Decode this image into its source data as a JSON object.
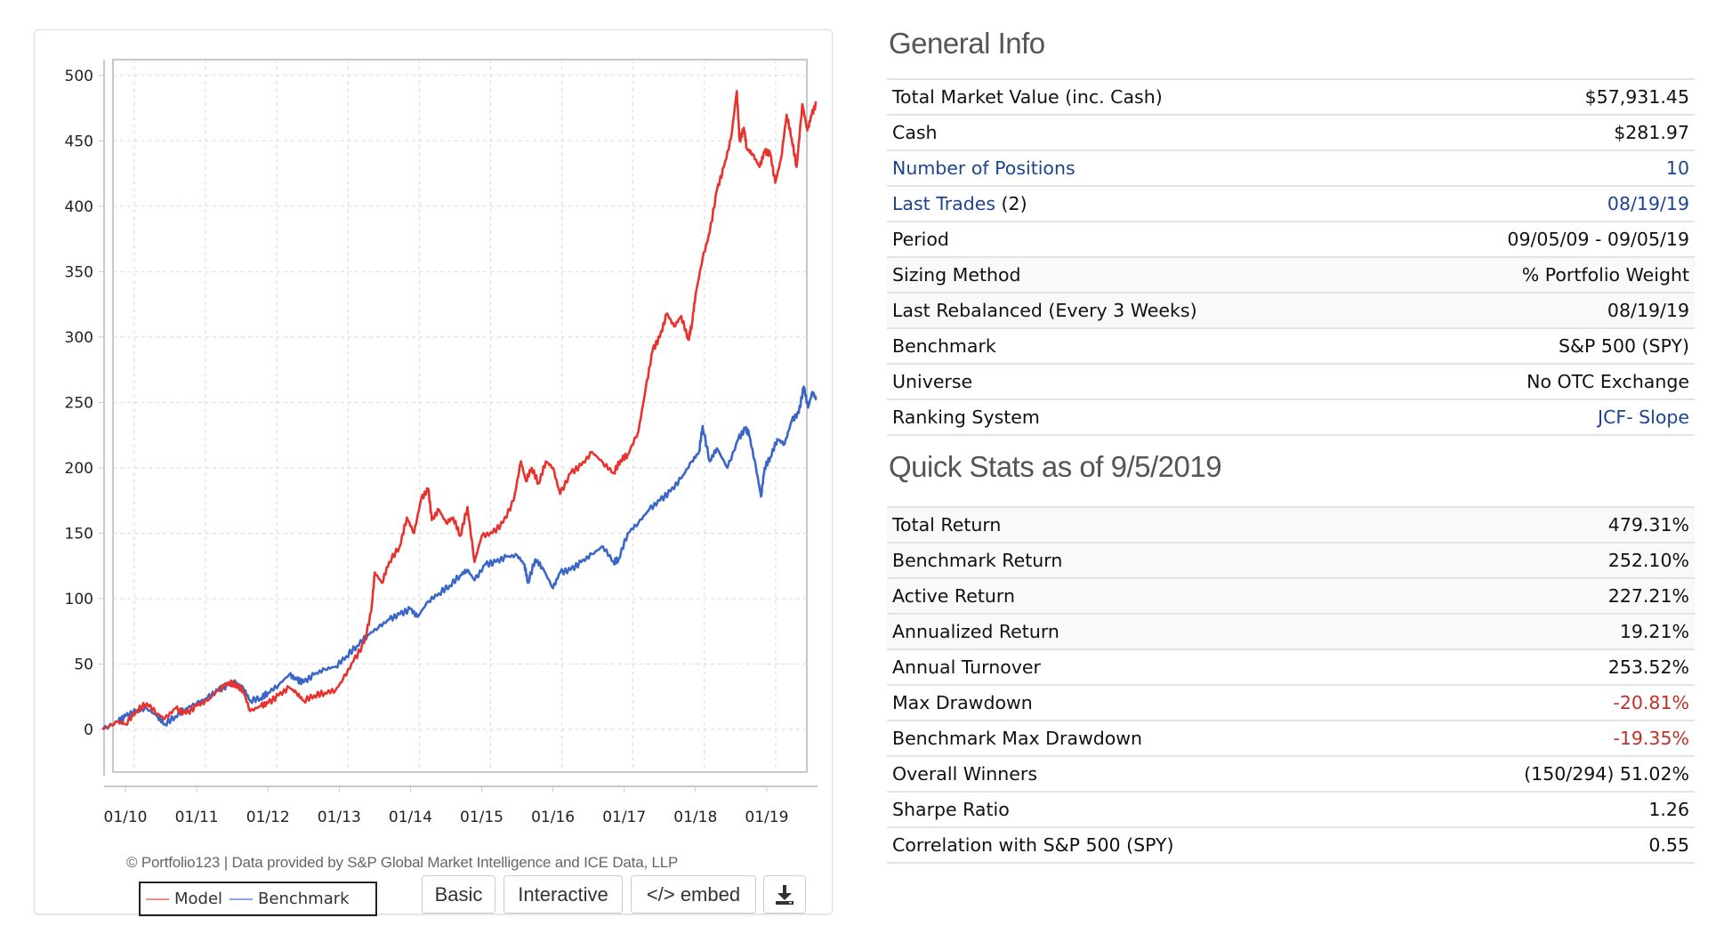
{
  "general_info": {
    "title": "General Info",
    "rows": [
      {
        "label": "Total Market Value (inc. Cash)",
        "value": "$57,931.45"
      },
      {
        "label": "Cash",
        "value": "$281.97"
      },
      {
        "label": "Number of Positions",
        "value": "10",
        "link": true
      },
      {
        "label": "Last Trades",
        "label_suffix": " (2)",
        "value": "08/19/19",
        "link": true
      },
      {
        "label": "Period",
        "value": "09/05/09 - 09/05/19"
      },
      {
        "label": "Sizing Method",
        "value": "% Portfolio Weight"
      },
      {
        "label": "Last Rebalanced (Every 3 Weeks)",
        "value": "08/19/19"
      },
      {
        "label": "Benchmark",
        "value": "S&P 500 (SPY)"
      },
      {
        "label": "Universe",
        "value": "No OTC Exchange"
      },
      {
        "label": "Ranking System",
        "value": "JCF- Slope",
        "value_link": true
      }
    ]
  },
  "quick_stats": {
    "title": "Quick Stats as of 9/5/2019",
    "rows": [
      {
        "label": "Total Return",
        "value": "479.31%"
      },
      {
        "label": "Benchmark Return",
        "value": "252.10%"
      },
      {
        "label": "Active Return",
        "value": "227.21%"
      },
      {
        "label": "Annualized Return",
        "value": "19.21%"
      },
      {
        "label": "Annual Turnover",
        "value": "253.52%"
      },
      {
        "label": "Max Drawdown",
        "value": "-20.81%",
        "negative": true
      },
      {
        "label": "Benchmark Max Drawdown",
        "value": "-19.35%",
        "negative": true
      },
      {
        "label": "Overall Winners",
        "value": "(150/294) 51.02%"
      },
      {
        "label": "Sharpe Ratio",
        "value": "1.26"
      },
      {
        "label": "Correlation with S&P 500 (SPY)",
        "value": "0.55"
      }
    ]
  },
  "chart_panel": {
    "copyright": "© Portfolio123 | Data provided by S&P Global Market Intelligence and ICE Data, LLP",
    "buttons": {
      "basic": "Basic",
      "interactive": "Interactive",
      "embed": "</> embed",
      "download_icon": "download-icon"
    }
  },
  "colors": {
    "model": "#e8322e",
    "benchmark": "#3a66c8",
    "link": "#1d4391",
    "negative": "#c0302a"
  },
  "chart_data": {
    "type": "line",
    "title": "",
    "xlabel": "",
    "ylabel": "",
    "ylim": [
      -25,
      515
    ],
    "xlim": [
      2009.68,
      2019.7
    ],
    "yticks": [
      0,
      50,
      100,
      150,
      200,
      250,
      300,
      350,
      400,
      450,
      500
    ],
    "xticks": [
      {
        "value": 2010.0,
        "label": "01/10"
      },
      {
        "value": 2011.0,
        "label": "01/11"
      },
      {
        "value": 2012.0,
        "label": "01/12"
      },
      {
        "value": 2013.0,
        "label": "01/13"
      },
      {
        "value": 2014.0,
        "label": "01/14"
      },
      {
        "value": 2015.0,
        "label": "01/15"
      },
      {
        "value": 2016.0,
        "label": "01/16"
      },
      {
        "value": 2017.0,
        "label": "01/17"
      },
      {
        "value": 2018.0,
        "label": "01/18"
      },
      {
        "value": 2019.0,
        "label": "01/19"
      }
    ],
    "grid": true,
    "legend_position": "bottom-left",
    "series": [
      {
        "name": "Model",
        "color": "#e8322e",
        "x": [
          2009.68,
          2009.9,
          2010.0,
          2010.15,
          2010.3,
          2010.45,
          2010.55,
          2010.7,
          2010.85,
          2011.0,
          2011.15,
          2011.3,
          2011.45,
          2011.55,
          2011.65,
          2011.75,
          2011.9,
          2012.0,
          2012.15,
          2012.3,
          2012.4,
          2012.5,
          2012.65,
          2012.8,
          2012.95,
          2013.05,
          2013.2,
          2013.35,
          2013.45,
          2013.5,
          2013.6,
          2013.7,
          2013.85,
          2013.95,
          2014.05,
          2014.15,
          2014.25,
          2014.3,
          2014.4,
          2014.5,
          2014.6,
          2014.7,
          2014.8,
          2014.9,
          2015.0,
          2015.15,
          2015.3,
          2015.45,
          2015.55,
          2015.62,
          2015.7,
          2015.8,
          2015.9,
          2016.0,
          2016.1,
          2016.25,
          2016.4,
          2016.55,
          2016.7,
          2016.85,
          2016.95,
          2017.05,
          2017.2,
          2017.3,
          2017.4,
          2017.5,
          2017.6,
          2017.7,
          2017.8,
          2017.9,
          2017.95,
          2018.0,
          2018.1,
          2018.2,
          2018.3,
          2018.4,
          2018.5,
          2018.58,
          2018.62,
          2018.68,
          2018.72,
          2018.8,
          2018.9,
          2018.97,
          2019.05,
          2019.12,
          2019.2,
          2019.28,
          2019.35,
          2019.42,
          2019.5,
          2019.57,
          2019.63,
          2019.7
        ],
        "y": [
          0,
          6,
          4,
          14,
          20,
          12,
          8,
          16,
          12,
          18,
          22,
          30,
          36,
          34,
          30,
          14,
          18,
          20,
          26,
          32,
          28,
          22,
          26,
          28,
          30,
          38,
          52,
          66,
          90,
          120,
          112,
          128,
          140,
          162,
          150,
          176,
          184,
          160,
          168,
          158,
          162,
          148,
          170,
          128,
          148,
          150,
          158,
          175,
          205,
          190,
          200,
          188,
          205,
          200,
          180,
          196,
          202,
          212,
          204,
          196,
          206,
          210,
          228,
          260,
          290,
          300,
          318,
          308,
          316,
          298,
          310,
          332,
          360,
          380,
          412,
          430,
          452,
          488,
          450,
          460,
          444,
          440,
          430,
          442,
          440,
          418,
          436,
          470,
          452,
          430,
          478,
          458,
          470,
          479
        ]
      },
      {
        "name": "Benchmark",
        "color": "#3a66c8",
        "x": [
          2009.68,
          2009.9,
          2010.0,
          2010.15,
          2010.3,
          2010.45,
          2010.55,
          2010.7,
          2010.85,
          2011.0,
          2011.15,
          2011.3,
          2011.45,
          2011.55,
          2011.65,
          2011.75,
          2011.9,
          2012.0,
          2012.15,
          2012.3,
          2012.4,
          2012.5,
          2012.65,
          2012.8,
          2012.95,
          2013.1,
          2013.25,
          2013.4,
          2013.55,
          2013.7,
          2013.85,
          2014.0,
          2014.1,
          2014.25,
          2014.4,
          2014.55,
          2014.7,
          2014.8,
          2014.9,
          2015.05,
          2015.2,
          2015.35,
          2015.5,
          2015.6,
          2015.65,
          2015.75,
          2015.85,
          2016.0,
          2016.1,
          2016.25,
          2016.4,
          2016.55,
          2016.7,
          2016.85,
          2016.92,
          2017.05,
          2017.2,
          2017.35,
          2017.5,
          2017.65,
          2017.8,
          2017.95,
          2018.05,
          2018.1,
          2018.2,
          2018.3,
          2018.45,
          2018.6,
          2018.7,
          2018.75,
          2018.85,
          2018.92,
          2018.97,
          2019.05,
          2019.15,
          2019.25,
          2019.35,
          2019.45,
          2019.52,
          2019.58,
          2019.64,
          2019.7
        ],
        "y": [
          0,
          6,
          10,
          14,
          16,
          10,
          4,
          10,
          16,
          20,
          24,
          30,
          34,
          36,
          32,
          22,
          24,
          28,
          34,
          42,
          38,
          36,
          42,
          46,
          48,
          56,
          64,
          72,
          78,
          84,
          88,
          92,
          86,
          98,
          104,
          110,
          118,
          122,
          114,
          126,
          128,
          132,
          133,
          126,
          112,
          130,
          124,
          108,
          120,
          122,
          128,
          134,
          140,
          128,
          130,
          150,
          158,
          168,
          175,
          182,
          192,
          205,
          212,
          232,
          205,
          215,
          200,
          222,
          230,
          226,
          200,
          178,
          200,
          208,
          222,
          218,
          236,
          242,
          262,
          246,
          258,
          252
        ]
      }
    ]
  }
}
